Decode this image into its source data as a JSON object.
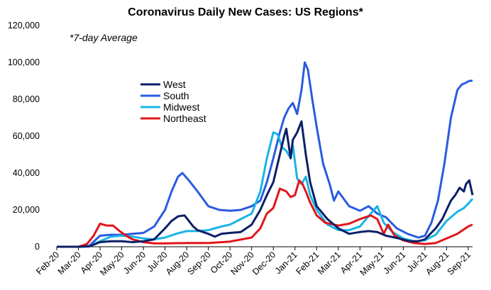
{
  "chart_data": {
    "type": "line",
    "title": "Coronavirus Daily New Cases: US Regions*",
    "note": "*7-day Average",
    "ylim": [
      0,
      120000
    ],
    "y_ticks": [
      "0",
      "20,000",
      "40,000",
      "60,000",
      "80,000",
      "100,000",
      "120,000"
    ],
    "y_tick_values": [
      0,
      20000,
      40000,
      60000,
      80000,
      100000,
      120000
    ],
    "x_tick_labels": [
      "Feb-20",
      "Mar-20",
      "Apr-20",
      "May-20",
      "Jun-20",
      "Jul-20",
      "Aug-20",
      "Sep-20",
      "Oct-20",
      "Nov-20",
      "Dec-20",
      "Jan-21",
      "Feb-21",
      "Mar-21",
      "Apr-21",
      "May-21",
      "Jun-21",
      "Jul-21",
      "Aug-21",
      "Sep-21"
    ],
    "x_range_months": [
      0,
      19.2
    ],
    "legend_position": "upper-left-center",
    "grid": false,
    "series": [
      {
        "name": "West",
        "color": "#0b1f66",
        "points": [
          [
            0,
            0
          ],
          [
            1,
            0
          ],
          [
            1.5,
            200
          ],
          [
            2,
            2500
          ],
          [
            2.5,
            3000
          ],
          [
            3,
            3000
          ],
          [
            3.5,
            2500
          ],
          [
            4,
            3000
          ],
          [
            4.5,
            4000
          ],
          [
            5,
            10000
          ],
          [
            5.3,
            14000
          ],
          [
            5.6,
            16500
          ],
          [
            5.9,
            17000
          ],
          [
            6.1,
            14000
          ],
          [
            6.3,
            11000
          ],
          [
            6.5,
            9000
          ],
          [
            7,
            7000
          ],
          [
            7.3,
            5500
          ],
          [
            7.6,
            7000
          ],
          [
            8,
            7500
          ],
          [
            8.5,
            8000
          ],
          [
            9,
            12000
          ],
          [
            9.4,
            20000
          ],
          [
            9.7,
            28000
          ],
          [
            10,
            35000
          ],
          [
            10.3,
            50000
          ],
          [
            10.5,
            60000
          ],
          [
            10.6,
            64000
          ],
          [
            10.8,
            48000
          ],
          [
            10.9,
            58000
          ],
          [
            11.1,
            62000
          ],
          [
            11.3,
            68000
          ],
          [
            11.5,
            50000
          ],
          [
            11.7,
            35000
          ],
          [
            12,
            22000
          ],
          [
            12.5,
            15000
          ],
          [
            13,
            10000
          ],
          [
            13.5,
            7000
          ],
          [
            14,
            8000
          ],
          [
            14.4,
            8500
          ],
          [
            14.8,
            8000
          ],
          [
            15.2,
            6000
          ],
          [
            15.8,
            4500
          ],
          [
            16.3,
            3000
          ],
          [
            16.7,
            3000
          ],
          [
            17,
            4000
          ],
          [
            17.5,
            10000
          ],
          [
            17.8,
            15000
          ],
          [
            18,
            20000
          ],
          [
            18.2,
            25000
          ],
          [
            18.4,
            28000
          ],
          [
            18.6,
            32000
          ],
          [
            18.8,
            30000
          ],
          [
            18.9,
            34000
          ],
          [
            19.05,
            36000
          ],
          [
            19.2,
            28000
          ]
        ]
      },
      {
        "name": "South",
        "color": "#2a5be0",
        "points": [
          [
            0,
            0
          ],
          [
            1,
            0
          ],
          [
            1.5,
            500
          ],
          [
            2,
            6000
          ],
          [
            2.5,
            6500
          ],
          [
            3,
            6500
          ],
          [
            3.5,
            7000
          ],
          [
            4,
            7500
          ],
          [
            4.5,
            11000
          ],
          [
            5,
            20000
          ],
          [
            5.3,
            30000
          ],
          [
            5.6,
            38000
          ],
          [
            5.8,
            40000
          ],
          [
            6.1,
            36000
          ],
          [
            6.5,
            30000
          ],
          [
            7,
            22000
          ],
          [
            7.5,
            20000
          ],
          [
            8,
            19500
          ],
          [
            8.5,
            20000
          ],
          [
            9,
            22000
          ],
          [
            9.4,
            25000
          ],
          [
            9.7,
            35000
          ],
          [
            10,
            48000
          ],
          [
            10.3,
            62000
          ],
          [
            10.5,
            70000
          ],
          [
            10.7,
            75000
          ],
          [
            10.9,
            78000
          ],
          [
            11.1,
            72000
          ],
          [
            11.3,
            85000
          ],
          [
            11.45,
            100000
          ],
          [
            11.6,
            96000
          ],
          [
            11.8,
            80000
          ],
          [
            12,
            65000
          ],
          [
            12.3,
            45000
          ],
          [
            12.6,
            34000
          ],
          [
            12.8,
            25000
          ],
          [
            13,
            30000
          ],
          [
            13.5,
            22000
          ],
          [
            14,
            19500
          ],
          [
            14.4,
            22000
          ],
          [
            14.8,
            18000
          ],
          [
            15.2,
            16000
          ],
          [
            15.7,
            10000
          ],
          [
            16.2,
            7000
          ],
          [
            16.7,
            5000
          ],
          [
            17,
            6000
          ],
          [
            17.3,
            13000
          ],
          [
            17.6,
            25000
          ],
          [
            17.9,
            45000
          ],
          [
            18.2,
            70000
          ],
          [
            18.5,
            85000
          ],
          [
            18.7,
            88000
          ],
          [
            18.9,
            89000
          ],
          [
            19.05,
            90000
          ],
          [
            19.2,
            90000
          ]
        ]
      },
      {
        "name": "Midwest",
        "color": "#19b4e6",
        "points": [
          [
            0,
            0
          ],
          [
            1,
            0
          ],
          [
            1.5,
            200
          ],
          [
            2,
            3000
          ],
          [
            2.5,
            5500
          ],
          [
            3,
            6000
          ],
          [
            3.5,
            5500
          ],
          [
            4,
            4500
          ],
          [
            4.5,
            4000
          ],
          [
            5,
            5000
          ],
          [
            5.5,
            7000
          ],
          [
            6,
            8500
          ],
          [
            6.5,
            8500
          ],
          [
            7,
            9000
          ],
          [
            7.3,
            10000
          ],
          [
            7.6,
            11000
          ],
          [
            8,
            12000
          ],
          [
            8.5,
            15000
          ],
          [
            9,
            18000
          ],
          [
            9.4,
            30000
          ],
          [
            9.7,
            48000
          ],
          [
            10,
            62000
          ],
          [
            10.2,
            61000
          ],
          [
            10.4,
            54000
          ],
          [
            10.6,
            52000
          ],
          [
            10.8,
            48000
          ],
          [
            10.9,
            55000
          ],
          [
            11.1,
            37000
          ],
          [
            11.3,
            34000
          ],
          [
            11.5,
            38000
          ],
          [
            11.7,
            28000
          ],
          [
            12,
            20000
          ],
          [
            12.5,
            12000
          ],
          [
            13,
            9000
          ],
          [
            13.5,
            9000
          ],
          [
            14,
            11000
          ],
          [
            14.5,
            18000
          ],
          [
            14.8,
            22000
          ],
          [
            15.1,
            13000
          ],
          [
            15.5,
            8000
          ],
          [
            16,
            4500
          ],
          [
            16.5,
            3000
          ],
          [
            17,
            3500
          ],
          [
            17.5,
            6500
          ],
          [
            18,
            14000
          ],
          [
            18.5,
            19000
          ],
          [
            18.8,
            21000
          ],
          [
            19.05,
            24000
          ],
          [
            19.2,
            26000
          ]
        ]
      },
      {
        "name": "Northeast",
        "color": "#e0161b",
        "points": [
          [
            0,
            0
          ],
          [
            1,
            0
          ],
          [
            1.4,
            1500
          ],
          [
            1.7,
            6000
          ],
          [
            2,
            12500
          ],
          [
            2.3,
            11500
          ],
          [
            2.6,
            11500
          ],
          [
            2.9,
            8500
          ],
          [
            3.2,
            6000
          ],
          [
            3.5,
            4000
          ],
          [
            4,
            2500
          ],
          [
            4.5,
            1800
          ],
          [
            5,
            1800
          ],
          [
            6,
            2000
          ],
          [
            7,
            2000
          ],
          [
            8,
            2800
          ],
          [
            9,
            5000
          ],
          [
            9.4,
            10000
          ],
          [
            9.7,
            18000
          ],
          [
            10,
            21000
          ],
          [
            10.3,
            31500
          ],
          [
            10.6,
            30000
          ],
          [
            10.8,
            27000
          ],
          [
            11,
            28000
          ],
          [
            11.2,
            36000
          ],
          [
            11.35,
            34000
          ],
          [
            11.5,
            30000
          ],
          [
            11.7,
            24000
          ],
          [
            12,
            17000
          ],
          [
            12.4,
            13000
          ],
          [
            13,
            11500
          ],
          [
            13.5,
            12500
          ],
          [
            14,
            15000
          ],
          [
            14.5,
            17000
          ],
          [
            14.8,
            15000
          ],
          [
            15.1,
            7000
          ],
          [
            15.3,
            12000
          ],
          [
            15.6,
            6000
          ],
          [
            16,
            3500
          ],
          [
            16.5,
            2000
          ],
          [
            17,
            1500
          ],
          [
            17.5,
            2000
          ],
          [
            18,
            4500
          ],
          [
            18.5,
            7000
          ],
          [
            19,
            11000
          ],
          [
            19.2,
            12000
          ]
        ]
      }
    ]
  }
}
